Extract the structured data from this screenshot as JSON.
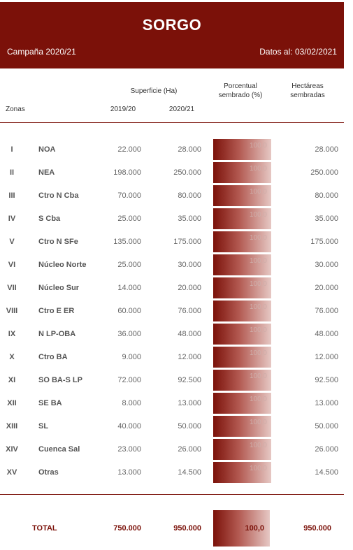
{
  "header": {
    "title": "SORGO",
    "campaign": "Campaña 2020/21",
    "date": "Datos al: 03/02/2021"
  },
  "columns": {
    "superficie": "Superficie (Ha)",
    "porcentual": "Porcentual sembrado (%)",
    "hectareas": "Hectáreas sembradas",
    "zonas": "Zonas",
    "year1": "2019/20",
    "year2": "2020/21"
  },
  "colors": {
    "brand": "#7b1109",
    "text": "#555555"
  },
  "rows": [
    {
      "roman": "I",
      "zona": "NOA",
      "y1": "22.000",
      "y2": "28.000",
      "pct": "100,0",
      "ha": "28.000"
    },
    {
      "roman": "II",
      "zona": "NEA",
      "y1": "198.000",
      "y2": "250.000",
      "pct": "100,0",
      "ha": "250.000"
    },
    {
      "roman": "III",
      "zona": "Ctro N Cba",
      "y1": "70.000",
      "y2": "80.000",
      "pct": "100,0",
      "ha": "80.000"
    },
    {
      "roman": "IV",
      "zona": "S Cba",
      "y1": "25.000",
      "y2": "35.000",
      "pct": "100,0",
      "ha": "35.000"
    },
    {
      "roman": "V",
      "zona": "Ctro N SFe",
      "y1": "135.000",
      "y2": "175.000",
      "pct": "100,0",
      "ha": "175.000"
    },
    {
      "roman": "VI",
      "zona": "Núcleo Norte",
      "y1": "25.000",
      "y2": "30.000",
      "pct": "100,0",
      "ha": "30.000"
    },
    {
      "roman": "VII",
      "zona": "Núcleo Sur",
      "y1": "14.000",
      "y2": "20.000",
      "pct": "100,0",
      "ha": "20.000"
    },
    {
      "roman": "VIII",
      "zona": "Ctro E ER",
      "y1": "60.000",
      "y2": "76.000",
      "pct": "100,0",
      "ha": "76.000"
    },
    {
      "roman": "IX",
      "zona": "N LP-OBA",
      "y1": "36.000",
      "y2": "48.000",
      "pct": "100,0",
      "ha": "48.000"
    },
    {
      "roman": "X",
      "zona": "Ctro BA",
      "y1": "9.000",
      "y2": "12.000",
      "pct": "100,0",
      "ha": "12.000"
    },
    {
      "roman": "XI",
      "zona": "SO BA-S LP",
      "y1": "72.000",
      "y2": "92.500",
      "pct": "100,0",
      "ha": "92.500"
    },
    {
      "roman": "XII",
      "zona": "SE BA",
      "y1": "8.000",
      "y2": "13.000",
      "pct": "100,0",
      "ha": "13.000"
    },
    {
      "roman": "XIII",
      "zona": "SL",
      "y1": "40.000",
      "y2": "50.000",
      "pct": "100,0",
      "ha": "50.000"
    },
    {
      "roman": "XIV",
      "zona": "Cuenca Sal",
      "y1": "23.000",
      "y2": "26.000",
      "pct": "100,0",
      "ha": "26.000"
    },
    {
      "roman": "XV",
      "zona": "Otras",
      "y1": "13.000",
      "y2": "14.500",
      "pct": "100,0",
      "ha": "14.500"
    }
  ],
  "total": {
    "label": "TOTAL",
    "y1": "750.000",
    "y2": "950.000",
    "pct": "100,0",
    "ha": "950.000"
  }
}
